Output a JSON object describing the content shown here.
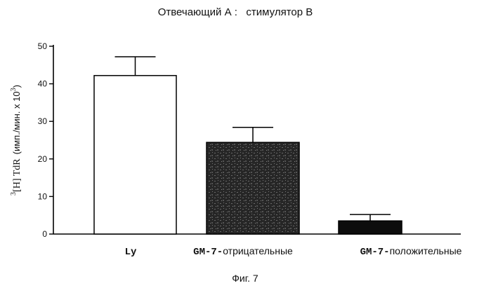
{
  "chart_data": {
    "type": "bar",
    "title": "Отвечающий А :   стимулятор В",
    "ylabel": {
      "sup": "3",
      "main": "[H] TdR",
      "units": "(имп./мин. x 10",
      "units_sup": "3",
      "units_close": ")"
    },
    "ylim": [
      0,
      50
    ],
    "yticks": [
      0,
      10,
      20,
      30,
      40,
      50
    ],
    "categories": [
      {
        "bold": "Ly",
        "rest": ""
      },
      {
        "bold": "GM-7-",
        "rest": "отрицательные"
      },
      {
        "bold": "GM-7-",
        "rest": "положительные"
      }
    ],
    "values": [
      42.2,
      24.4,
      3.5
    ],
    "errors": [
      5.0,
      4.0,
      1.7
    ],
    "bar_fills": [
      "#ffffff",
      "#2a2a2a",
      "#0d0d0d"
    ],
    "grid": false,
    "legend": "none"
  },
  "caption": "Фиг. 7"
}
